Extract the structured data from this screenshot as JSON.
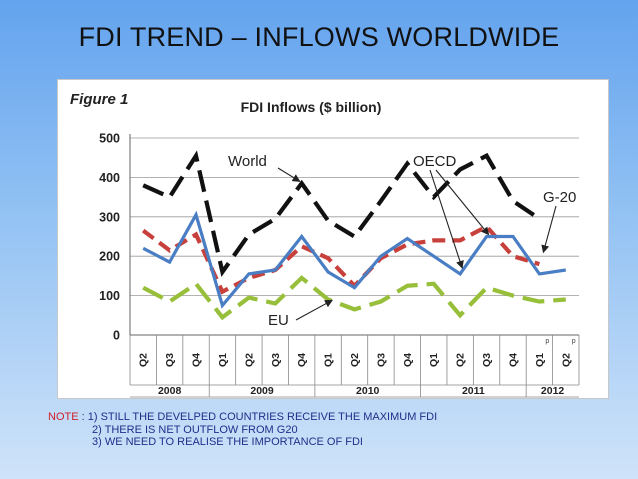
{
  "slide": {
    "title": "FDI TREND – INFLOWS WORLDWIDE"
  },
  "colors": {
    "world": "#111111",
    "oecd": "#c8403c",
    "g20": "#4a7ec4",
    "eu": "#97bf3a"
  },
  "chart_data": {
    "type": "line",
    "figure_label": "Figure 1",
    "title": "FDI Inflows ($ billion)",
    "xlabel": "",
    "ylabel": "",
    "ylim": [
      0,
      500
    ],
    "yticks": [
      0,
      100,
      200,
      300,
      400,
      500
    ],
    "grid": true,
    "categories": [
      "Q2",
      "Q3",
      "Q4",
      "Q1",
      "Q2",
      "Q3",
      "Q4",
      "Q1",
      "Q2",
      "Q3",
      "Q4",
      "Q1",
      "Q2",
      "Q3",
      "Q4",
      "Q1",
      "Q2"
    ],
    "category_marks": [
      "",
      "",
      "",
      "",
      "",
      "",
      "",
      "",
      "",
      "",
      "",
      "",
      "",
      "",
      "",
      "p",
      "p"
    ],
    "year_groups": [
      {
        "label": "2008",
        "span": 3
      },
      {
        "label": "2009",
        "span": 4
      },
      {
        "label": "2010",
        "span": 4
      },
      {
        "label": "2011",
        "span": 4
      },
      {
        "label": "2012",
        "span": 2
      }
    ],
    "series": [
      {
        "name": "World",
        "style": "dash-long",
        "values": [
          380,
          350,
          455,
          160,
          255,
          295,
          385,
          290,
          250,
          340,
          435,
          350,
          420,
          455,
          340,
          295,
          null
        ]
      },
      {
        "name": "OECD",
        "style": "dash",
        "values": [
          265,
          215,
          255,
          110,
          145,
          165,
          225,
          195,
          125,
          195,
          230,
          240,
          240,
          275,
          200,
          180,
          null
        ]
      },
      {
        "name": "G-20",
        "style": "solid",
        "values": [
          220,
          185,
          305,
          75,
          155,
          165,
          250,
          160,
          120,
          200,
          245,
          200,
          155,
          250,
          250,
          155,
          165
        ]
      },
      {
        "name": "EU",
        "style": "dash-long",
        "values": [
          120,
          85,
          130,
          45,
          95,
          80,
          145,
          90,
          65,
          85,
          125,
          130,
          50,
          120,
          100,
          85,
          90
        ]
      }
    ],
    "annotations": [
      "World",
      "OECD",
      "G-20",
      "EU"
    ]
  },
  "note": {
    "label": "NOTE",
    "lines": [
      " : 1) STILL THE DEVELPED COUNTRIES RECEIVE THE MAXIMUM FDI",
      "2) THERE IS NET OUTFLOW FROM G20",
      "3) WE NEED TO REALISE THE IMPORTANCE OF FDI"
    ]
  }
}
